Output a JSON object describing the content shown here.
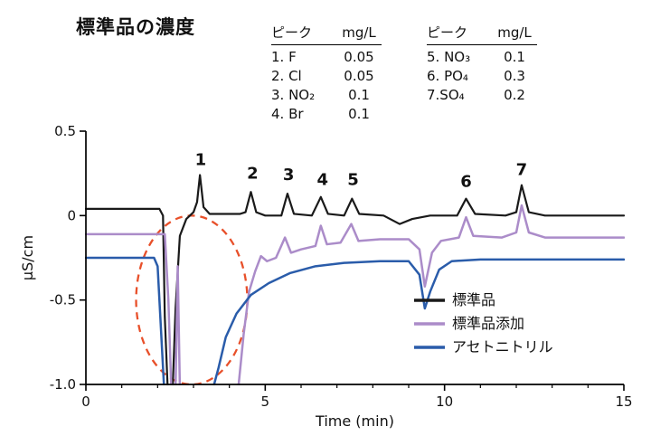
{
  "title": "標準品の濃度",
  "tables": [
    {
      "headers": [
        "ピーク",
        "mg/L"
      ],
      "rows": [
        [
          "1. F",
          "0.05"
        ],
        [
          "2. Cl",
          "0.05"
        ],
        [
          "3. NO₂",
          "0.1"
        ],
        [
          "4. Br",
          "0.1"
        ]
      ]
    },
    {
      "headers": [
        "ピーク",
        "mg/L"
      ],
      "rows": [
        [
          "5. NO₃",
          "0.1"
        ],
        [
          "6. PO₄",
          "0.3"
        ],
        [
          "7.SO₄",
          "0.2"
        ]
      ]
    }
  ],
  "chart_data": {
    "type": "line",
    "title": "標準品の濃度",
    "xlabel": "Time (min)",
    "ylabel": "µS/cm",
    "xlim": [
      0,
      15
    ],
    "ylim": [
      -1.0,
      0.5
    ],
    "xticks": [
      0,
      5,
      10,
      15
    ],
    "xminorticks": [
      1,
      2,
      3,
      4,
      6,
      7,
      8,
      9,
      11,
      12,
      13,
      14
    ],
    "yticks": [
      0.5,
      0,
      -0.5,
      -1.0
    ],
    "ytick_labels": [
      "0.5",
      "0",
      "-0.5",
      "-1.0"
    ],
    "legend_position": "lower right",
    "peak_labels": [
      {
        "label": "1",
        "x": 3.2,
        "y": 0.3
      },
      {
        "label": "2",
        "x": 4.65,
        "y": 0.22
      },
      {
        "label": "3",
        "x": 5.65,
        "y": 0.21
      },
      {
        "label": "4",
        "x": 6.6,
        "y": 0.18
      },
      {
        "label": "5",
        "x": 7.45,
        "y": 0.18
      },
      {
        "label": "6",
        "x": 10.6,
        "y": 0.17
      },
      {
        "label": "7",
        "x": 12.15,
        "y": 0.24
      }
    ],
    "annotation_ellipse": {
      "cx": 2.95,
      "cy": -0.5,
      "rx": 1.55,
      "ry": 0.5,
      "color": "#e8502a",
      "style": "dashed"
    },
    "series": [
      {
        "key": "standard",
        "name": "標準品",
        "color": "#1a1a1a",
        "width": 2.2,
        "points": [
          [
            0,
            0.04
          ],
          [
            1.5,
            0.04
          ],
          [
            2.05,
            0.04
          ],
          [
            2.15,
            0.0
          ],
          [
            2.2,
            -0.6
          ],
          [
            2.28,
            -1.02
          ],
          [
            2.42,
            -1.02
          ],
          [
            2.5,
            -0.55
          ],
          [
            2.62,
            -0.12
          ],
          [
            2.8,
            -0.02
          ],
          [
            3.0,
            0.02
          ],
          [
            3.1,
            0.08
          ],
          [
            3.18,
            0.24
          ],
          [
            3.28,
            0.05
          ],
          [
            3.45,
            0.01
          ],
          [
            4.3,
            0.01
          ],
          [
            4.45,
            0.02
          ],
          [
            4.6,
            0.14
          ],
          [
            4.75,
            0.02
          ],
          [
            5.0,
            0.0
          ],
          [
            5.45,
            0.0
          ],
          [
            5.62,
            0.13
          ],
          [
            5.8,
            0.01
          ],
          [
            6.3,
            0.0
          ],
          [
            6.55,
            0.11
          ],
          [
            6.75,
            0.01
          ],
          [
            7.2,
            0.0
          ],
          [
            7.42,
            0.1
          ],
          [
            7.62,
            0.01
          ],
          [
            8.3,
            0.0
          ],
          [
            8.75,
            -0.05
          ],
          [
            9.1,
            -0.02
          ],
          [
            9.6,
            0.0
          ],
          [
            10.35,
            0.0
          ],
          [
            10.6,
            0.1
          ],
          [
            10.85,
            0.01
          ],
          [
            11.7,
            0.0
          ],
          [
            12.0,
            0.02
          ],
          [
            12.15,
            0.18
          ],
          [
            12.35,
            0.02
          ],
          [
            12.8,
            0.0
          ],
          [
            15,
            0.0
          ]
        ]
      },
      {
        "key": "standard-addition",
        "name": "標準品添加",
        "color": "#ab8cc9",
        "width": 2.5,
        "points": [
          [
            0,
            -0.11
          ],
          [
            2.2,
            -0.11
          ],
          [
            2.3,
            -0.5
          ],
          [
            2.38,
            -1.02
          ],
          [
            2.5,
            -1.02
          ],
          [
            2.56,
            -0.3
          ],
          [
            2.62,
            -1.02
          ],
          [
            4.25,
            -1.02
          ],
          [
            4.4,
            -0.7
          ],
          [
            4.55,
            -0.45
          ],
          [
            4.72,
            -0.33
          ],
          [
            4.88,
            -0.24
          ],
          [
            5.05,
            -0.27
          ],
          [
            5.3,
            -0.25
          ],
          [
            5.55,
            -0.13
          ],
          [
            5.72,
            -0.22
          ],
          [
            6.0,
            -0.2
          ],
          [
            6.4,
            -0.18
          ],
          [
            6.55,
            -0.06
          ],
          [
            6.72,
            -0.17
          ],
          [
            7.1,
            -0.16
          ],
          [
            7.4,
            -0.05
          ],
          [
            7.6,
            -0.15
          ],
          [
            8.2,
            -0.14
          ],
          [
            9.0,
            -0.14
          ],
          [
            9.3,
            -0.2
          ],
          [
            9.45,
            -0.42
          ],
          [
            9.65,
            -0.22
          ],
          [
            9.9,
            -0.15
          ],
          [
            10.4,
            -0.13
          ],
          [
            10.6,
            -0.01
          ],
          [
            10.8,
            -0.12
          ],
          [
            11.6,
            -0.13
          ],
          [
            12.0,
            -0.1
          ],
          [
            12.15,
            0.06
          ],
          [
            12.35,
            -0.1
          ],
          [
            12.8,
            -0.13
          ],
          [
            15,
            -0.13
          ]
        ]
      },
      {
        "key": "acetonitrile",
        "name": "アセトニトリル",
        "color": "#2a5caa",
        "width": 2.5,
        "points": [
          [
            0,
            -0.25
          ],
          [
            1.9,
            -0.25
          ],
          [
            2.0,
            -0.3
          ],
          [
            2.1,
            -0.7
          ],
          [
            2.18,
            -1.02
          ],
          [
            3.55,
            -1.02
          ],
          [
            3.7,
            -0.9
          ],
          [
            3.9,
            -0.72
          ],
          [
            4.2,
            -0.58
          ],
          [
            4.6,
            -0.47
          ],
          [
            5.1,
            -0.4
          ],
          [
            5.7,
            -0.34
          ],
          [
            6.4,
            -0.3
          ],
          [
            7.2,
            -0.28
          ],
          [
            8.2,
            -0.27
          ],
          [
            9.0,
            -0.27
          ],
          [
            9.3,
            -0.35
          ],
          [
            9.45,
            -0.55
          ],
          [
            9.6,
            -0.45
          ],
          [
            9.85,
            -0.32
          ],
          [
            10.2,
            -0.27
          ],
          [
            11.0,
            -0.26
          ],
          [
            15,
            -0.26
          ]
        ]
      }
    ]
  }
}
